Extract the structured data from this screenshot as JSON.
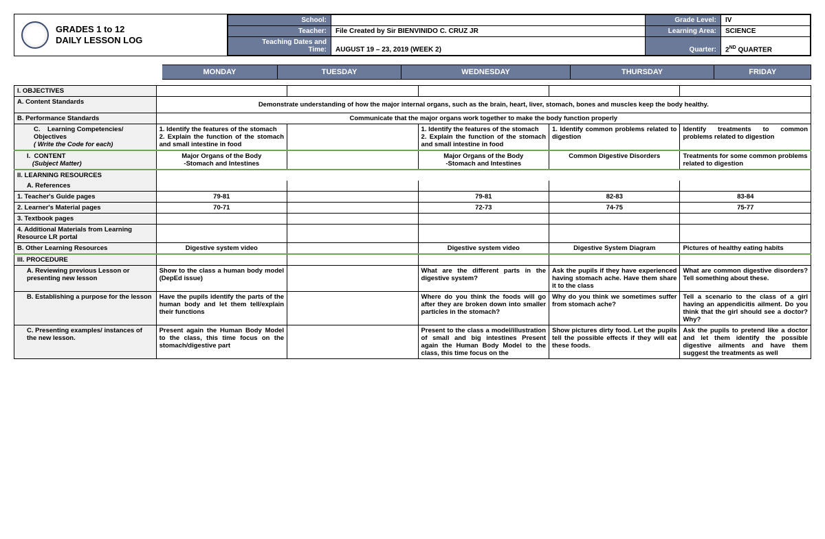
{
  "header": {
    "title_line1": "GRADES 1 to 12",
    "title_line2": "DAILY LESSON LOG",
    "school_label": "School:",
    "school_value": "",
    "teacher_label": "Teacher:",
    "teacher_value": "File Created by Sir BIENVINIDO C. CRUZ JR",
    "dates_label": "Teaching Dates and Time:",
    "dates_value": "AUGUST 19 – 23, 2019 (WEEK 2)",
    "grade_label": "Grade Level:",
    "grade_value": "IV",
    "area_label": "Learning Area:",
    "area_value": "SCIENCE",
    "quarter_label": "Quarter:",
    "quarter_value_pre": "2",
    "quarter_value_sup": "ND",
    "quarter_value_post": " QUARTER"
  },
  "days": [
    "MONDAY",
    "TUESDAY",
    "WEDNESDAY",
    "THURSDAY",
    "FRIDAY"
  ],
  "rows": {
    "objectives": "I.  OBJECTIVES",
    "content_std": "A.    Content Standards",
    "content_std_text": "Demonstrate understanding of how the major internal organs, such as the brain, heart, liver, stomach, bones and muscles keep the body healthy.",
    "perf_std": "B.  Performance Standards",
    "perf_std_text": "Communicate that the major organs work together to make the body function properly",
    "competencies": "C.    Learning Competencies/ Objectives\n( Write the Code for each)",
    "comp_mon": "1.       Identify the features of the stomach\n2.       Explain the function of the stomach and small intestine in food",
    "comp_wed": "1.       Identify the features of the stomach\n2.       Explain the function of the stomach and small intestine in food",
    "comp_thu": "1. Identify common problems related to digestion",
    "comp_fri": "Identify treatments to common problems related to digestion",
    "content": "I.  CONTENT\n(Subject Matter)",
    "cont_mon": "Major Organs of the Body\n-Stomach and Intestines",
    "cont_wed": "Major Organs of the Body\n-Stomach and Intestines",
    "cont_thu": "Common Digestive Disorders",
    "cont_fri": "Treatments for some common problems related to digestion",
    "lr": "II.    LEARNING RESOURCES",
    "refs": "A.    References",
    "tg": "1.        Teacher's Guide pages",
    "tg_mon": "79-81",
    "tg_wed": "79-81",
    "tg_thu": "82-83",
    "tg_fri": "83-84",
    "lm": "2.        Learner's Material pages",
    "lm_mon": "70-71",
    "lm_wed": "72-73",
    "lm_thu": "74-75",
    "lm_fri": "75-77",
    "tb": "3.        Textbook pages",
    "addl": "4.        Additional Materials from Learning Resource  LR portal",
    "other": "B.        Other Learning Resources",
    "other_mon": "Digestive system video",
    "other_wed": "Digestive system video",
    "other_thu": "Digestive System Diagram",
    "other_fri": "Pictures of healthy eating habits",
    "proc": "III.       PROCEDURE",
    "pa": "A.        Reviewing previous Lesson or presenting new lesson",
    "pa_mon": "Show to the class a human body model (DepEd issue)",
    "pa_wed": "What are the different parts in the digestive system?",
    "pa_thu": "Ask the pupils if they have experienced having stomach ache. Have them share it to the class",
    "pa_fri": "What are common digestive disorders? Tell something about these.",
    "pb": "B.        Establishing a purpose for the lesson",
    "pb_mon": "Have the pupils identify the parts of the human body and let them tell/explain their functions",
    "pb_wed": "Where do you think the foods will go after they are broken down into smaller particles in the stomach?",
    "pb_thu": "Why do you think we sometimes suffer from stomach ache?",
    "pb_fri": "Tell a scenario to the class of a girl having an appendicitis ailment. Do you think that the girl should see a doctor? Why?",
    "pc": "C.        Presenting examples/ instances of the new lesson.",
    "pc_mon": "Present again the Human Body Model to the class, this time focus on the stomach/digestive part",
    "pc_wed": "Present to the class a model/illustration of small and big intestines Present again the Human Body Model to the class, this time focus on the",
    "pc_thu": "Show pictures dirty food. Let the pupils tell the possible effects if they will eat these foods.",
    "pc_fri": "Ask the pupils to pretend like a doctor and let them identify the possible digestive ailments and have them suggest the treatments as well"
  },
  "colors": {
    "header_bg": "#6b7a99",
    "green_border": "#6aa84f"
  }
}
